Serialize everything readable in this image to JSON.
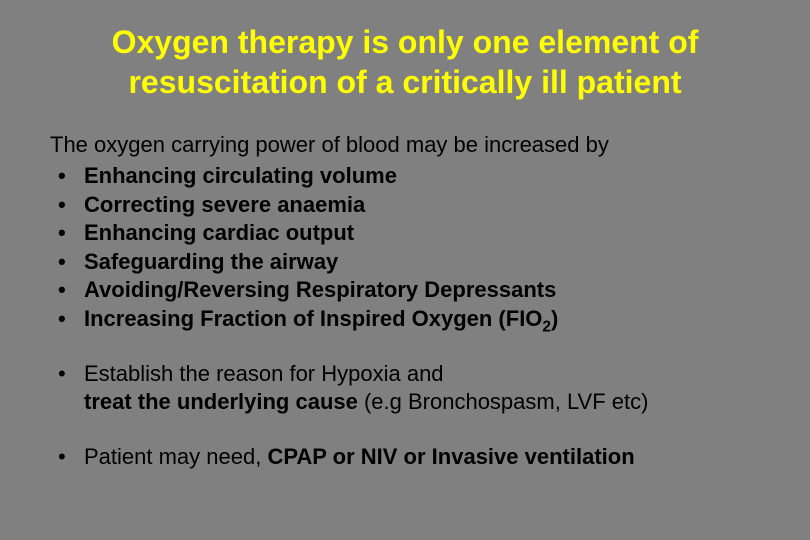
{
  "slide": {
    "title": "Oxygen therapy is only one element of resuscitation of a critically ill patient",
    "intro": "The oxygen carrying power of blood may be increased  by",
    "bullets_main": [
      "Enhancing circulating volume",
      "Correcting severe anaemia",
      "Enhancing cardiac output",
      "Safeguarding the airway",
      "Avoiding/Reversing Respiratory Depressants"
    ],
    "bullet_fio2_prefix": "Increasing Fraction of Inspired Oxygen (FIO",
    "bullet_fio2_sub": "2",
    "bullet_fio2_suffix": ")",
    "bullet_reason_a": "Establish the reason for Hypoxia and",
    "bullet_reason_b_pre": " treat the underlying cause",
    "bullet_reason_b_post": " (e.g Bronchospasm, LVF etc)",
    "bullet_last_pre": "Patient may need, ",
    "bullet_last_bold": "CPAP or NIV or Invasive ventilation",
    "colors": {
      "background": "#808080",
      "title": "#ffff00",
      "body": "#000000"
    },
    "typography": {
      "title_fontsize": 32,
      "body_fontsize": 22,
      "font_family": "Arial"
    }
  }
}
